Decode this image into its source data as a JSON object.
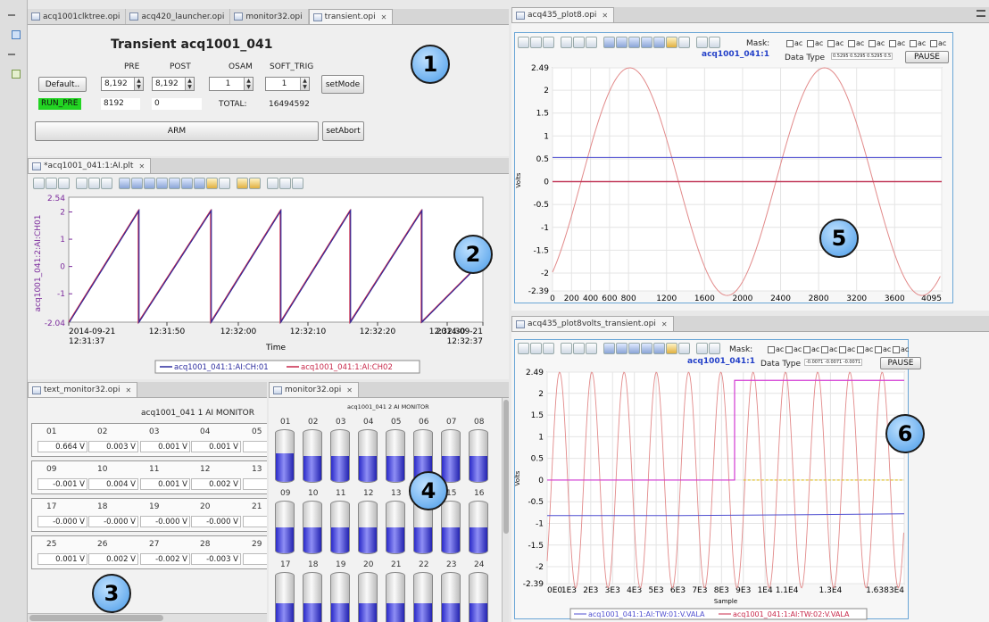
{
  "left_tabs": [
    {
      "label": "acq1001clktree.opi"
    },
    {
      "label": "acq420_launcher.opi"
    },
    {
      "label": "monitor32.opi"
    },
    {
      "label": "transient.opi"
    }
  ],
  "transient": {
    "title": "Transient acq1001_041",
    "col_headers": [
      "PRE",
      "POST",
      "OSAM",
      "SOFT_TRIG"
    ],
    "default_label": "Default..",
    "pre_value": "8,192",
    "post_value": "8,192",
    "osam_value": "1",
    "soft_trig_value": "1",
    "setmode_label": "setMode",
    "state": "RUN_PRE",
    "pre_readback": "8192",
    "post_readback": "0",
    "total_label": "TOTAL:",
    "total_value": "16494592",
    "arm_label": "ARM",
    "setabort_label": "setAbort"
  },
  "plot_ai": {
    "tab": "*acq1001_041:1:AI.plt",
    "ylabel": "acq1001_041:2:AI:CH01",
    "xlabel": "Time",
    "ymax_label": "2.54",
    "ymin_label": "-2.04",
    "y_ticks": [
      "2",
      "1",
      "0",
      "-1"
    ],
    "x_ticks": [
      {
        "line1": "2014-09-21",
        "line2": "12:31:37"
      },
      {
        "line1": "12:31:50",
        "line2": ""
      },
      {
        "line1": "12:32:00",
        "line2": ""
      },
      {
        "line1": "12:32:10",
        "line2": ""
      },
      {
        "line1": "12:32:20",
        "line2": ""
      },
      {
        "line1": "12:32:30",
        "line2": ""
      },
      {
        "line1": "2014-09-21",
        "line2": "12:32:37"
      }
    ],
    "legend": [
      "acq1001_041:1:AI:CH:01",
      "acq1001_041:1:AI:CH02"
    ],
    "colors": [
      "#2b2b9e",
      "#c8284a"
    ]
  },
  "text_monitor": {
    "tab": "text_monitor32.opi",
    "title": "acq1001_041 1 AI MONITOR",
    "groups": [
      {
        "labels": [
          "01",
          "02",
          "03",
          "04",
          "05"
        ],
        "values": [
          "0.664 V",
          "0.003 V",
          "0.001 V",
          "0.001 V",
          "-0.0"
        ]
      },
      {
        "labels": [
          "09",
          "10",
          "11",
          "12",
          "13"
        ],
        "values": [
          "-0.001 V",
          "0.004 V",
          "0.001 V",
          "0.002 V",
          "-0.0"
        ]
      },
      {
        "labels": [
          "17",
          "18",
          "19",
          "20",
          "21"
        ],
        "values": [
          "-0.000 V",
          "-0.000 V",
          "-0.000 V",
          "-0.000 V",
          "-0.0"
        ]
      },
      {
        "labels": [
          "25",
          "26",
          "27",
          "28",
          "29"
        ],
        "values": [
          "0.001 V",
          "0.002 V",
          "-0.002 V",
          "-0.003 V",
          "-0.0"
        ]
      }
    ]
  },
  "monitor32": {
    "tab": "monitor32.opi",
    "title": "acq1001_041 2 AI MONITOR",
    "rows": [
      [
        "01",
        "02",
        "03",
        "04",
        "05",
        "06",
        "07",
        "08"
      ],
      [
        "09",
        "10",
        "11",
        "12",
        "13",
        "14",
        "15",
        "16"
      ],
      [
        "17",
        "18",
        "19",
        "20",
        "21",
        "22",
        "23",
        "24"
      ]
    ],
    "fill_levels": [
      [
        0.55,
        0.5,
        0.5,
        0.5,
        0.5,
        0.5,
        0.5,
        0.5
      ],
      [
        0.5,
        0.5,
        0.5,
        0.5,
        0.5,
        0.5,
        0.5,
        0.5
      ],
      [
        0.5,
        0.5,
        0.5,
        0.5,
        0.5,
        0.5,
        0.5,
        0.5
      ]
    ]
  },
  "plot8": {
    "tab": "acq435_plot8.opi",
    "mask_label": "Mask:",
    "mask_items": [
      "ac",
      "ac",
      "ac",
      "ac",
      "ac",
      "ac",
      "ac",
      "ac"
    ],
    "channel": "acq1001_041:1",
    "datatype_label": "Data Type",
    "datatype_value": "0.5295  0.5295  0.5295  0.5",
    "pause_label": "PAUSE",
    "ylabel": "Volts",
    "y_ticks": [
      "2.49",
      "2",
      "1.5",
      "1",
      "0.5",
      "0",
      "-0.5",
      "-1",
      "-1.5",
      "-2",
      "-2.39"
    ],
    "x_ticks": [
      "0",
      "200",
      "400",
      "600",
      "800",
      "1200",
      "1600",
      "2000",
      "2400",
      "2800",
      "3200",
      "3600",
      "4095"
    ]
  },
  "plot8v": {
    "tab": "acq435_plot8volts_transient.opi",
    "mask_label": "Mask:",
    "mask_items": [
      "ac",
      "ac",
      "ac",
      "ac",
      "ac",
      "ac",
      "ac",
      "ac"
    ],
    "channel": "acq1001_041:1",
    "datatype_label": "Data Type",
    "datatype_value": "-0.0071 -0.0071 -0.0071",
    "pause_label": "PAUSE",
    "ylabel": "Volts",
    "xlabel": "Sample",
    "y_ticks": [
      "2.49",
      "2",
      "1.5",
      "1",
      "0.5",
      "0",
      "-0.5",
      "-1",
      "-1.5",
      "-2",
      "-2.39"
    ],
    "x_ticks": [
      "0E0",
      "1E3",
      "2E3",
      "3E3",
      "4E3",
      "5E3",
      "6E3",
      "7E3",
      "8E3",
      "9E3",
      "1E4",
      "1.1E4",
      "1.3E4",
      "1.6383E4"
    ],
    "legend": [
      "acq1001_041:1:AI:TW:01:V.VALA",
      "acq1001_041:1:AI:TW:02:V.VALA"
    ]
  },
  "badges": [
    "1",
    "2",
    "3",
    "4",
    "5",
    "6"
  ]
}
